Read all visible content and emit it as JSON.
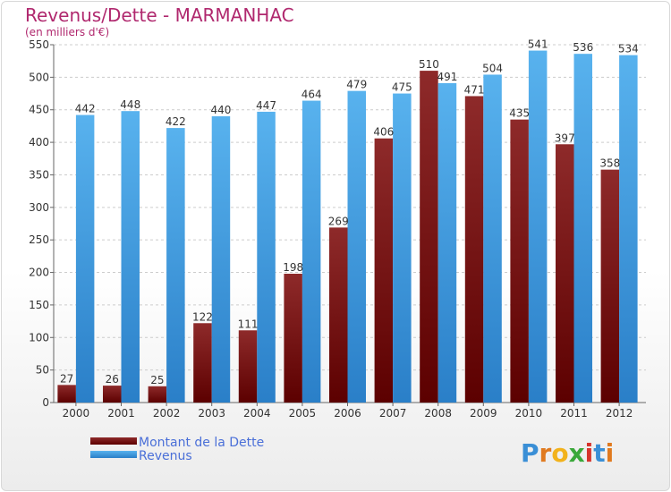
{
  "chart_data": {
    "type": "bar",
    "title": "Revenus/Dette - MARMANHAC",
    "subtitle": "(en milliers d'€)",
    "categories": [
      "2000",
      "2001",
      "2002",
      "2003",
      "2004",
      "2005",
      "2006",
      "2007",
      "2008",
      "2009",
      "2010",
      "2011",
      "2012"
    ],
    "series": [
      {
        "name": "Montant de la Dette",
        "values": [
          27,
          26,
          25,
          122,
          111,
          198,
          269,
          406,
          510,
          471,
          435,
          397,
          358
        ],
        "color": "#7a1212"
      },
      {
        "name": "Revenus",
        "values": [
          442,
          448,
          422,
          440,
          447,
          464,
          479,
          475,
          491,
          504,
          541,
          536,
          534
        ],
        "color": "#3c9be3"
      }
    ],
    "ylim": [
      0,
      550
    ],
    "yticks": [
      0,
      50,
      100,
      150,
      200,
      250,
      300,
      350,
      400,
      450,
      500,
      550
    ],
    "grid": true,
    "legend_position": "bottom-left"
  },
  "logo": {
    "text": "Proxiti"
  }
}
